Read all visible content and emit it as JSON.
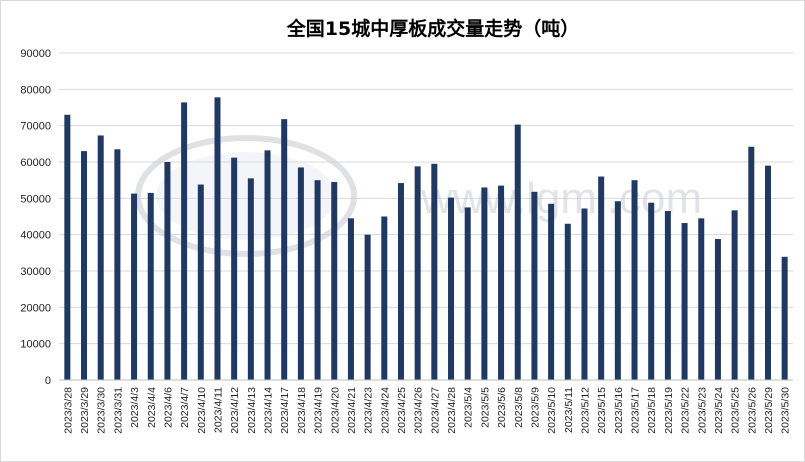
{
  "watermark": {
    "text": "www.lgmi.com",
    "color": "#c9cdd4"
  },
  "chart_data": {
    "type": "bar",
    "title": "全国15城中厚板成交量走势（吨）",
    "xlabel": "",
    "ylabel": "",
    "ylim": [
      0,
      90000
    ],
    "yticks": [
      0,
      10000,
      20000,
      30000,
      40000,
      50000,
      60000,
      70000,
      80000,
      90000
    ],
    "grid": true,
    "bar_color": "#1f3864",
    "categories": [
      "2023/3/28",
      "2023/3/29",
      "2023/3/30",
      "2023/3/31",
      "2023/4/3",
      "2023/4/4",
      "2023/4/6",
      "2023/4/7",
      "2023/4/10",
      "2023/4/11",
      "2023/4/12",
      "2023/4/13",
      "2023/4/14",
      "2023/4/17",
      "2023/4/18",
      "2023/4/19",
      "2023/4/20",
      "2023/4/21",
      "2023/4/23",
      "2023/4/24",
      "2023/4/25",
      "2023/4/26",
      "2023/4/27",
      "2023/4/28",
      "2023/5/4",
      "2023/5/5",
      "2023/5/6",
      "2023/5/8",
      "2023/5/9",
      "2023/5/10",
      "2023/5/11",
      "2023/5/12",
      "2023/5/15",
      "2023/5/16",
      "2023/5/17",
      "2023/5/18",
      "2023/5/19",
      "2023/5/22",
      "2023/5/23",
      "2023/5/24",
      "2023/5/25",
      "2023/5/26",
      "2023/5/29",
      "2023/5/30"
    ],
    "values": [
      73000,
      63000,
      67300,
      63500,
      51300,
      51500,
      60000,
      76400,
      53800,
      77800,
      61200,
      55500,
      63200,
      71800,
      58500,
      55000,
      54500,
      44500,
      40000,
      45000,
      54200,
      58800,
      59500,
      50200,
      47500,
      53000,
      53500,
      70300,
      51800,
      48500,
      43000,
      47200,
      56000,
      49200,
      55000,
      48800,
      46500,
      43200,
      44500,
      38800,
      46700,
      64200,
      59000,
      33900
    ]
  }
}
